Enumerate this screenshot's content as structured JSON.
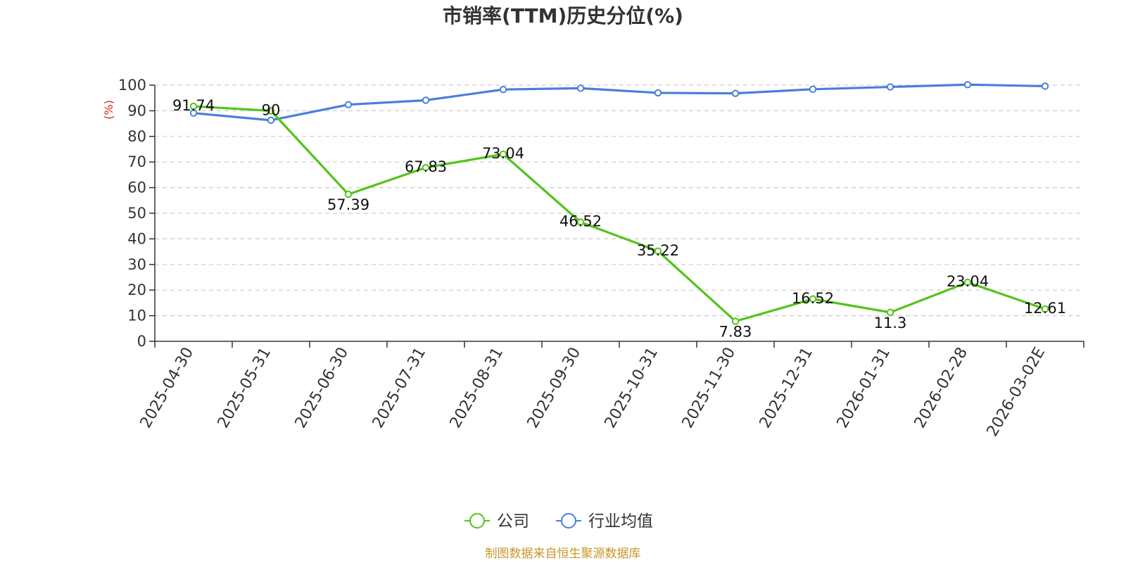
{
  "chart_data": {
    "type": "line",
    "title": "市销率(TTM)历史分位(%)",
    "ylabel": "(%)",
    "ylim": [
      0,
      100
    ],
    "yticks": [
      0,
      10,
      20,
      30,
      40,
      50,
      60,
      70,
      80,
      90,
      100
    ],
    "grid": true,
    "legend_position": "bottom",
    "categories": [
      "2025-04-30",
      "2025-05-31",
      "2025-06-30",
      "2025-07-31",
      "2025-08-31",
      "2025-09-30",
      "2025-10-31",
      "2025-11-30",
      "2025-12-31",
      "2026-01-31",
      "2026-02-28",
      "2026-03-02E"
    ],
    "series": [
      {
        "name": "公司",
        "color": "#52c41a",
        "values": [
          91.74,
          90,
          57.39,
          67.83,
          73.04,
          46.52,
          35.22,
          7.83,
          16.52,
          11.3,
          23.04,
          12.61
        ],
        "labels": [
          "91.74",
          "90",
          "57.39",
          "67.83",
          "73.04",
          "46.52",
          "35.22",
          "7.83",
          "16.52",
          "11.3",
          "23.04",
          "12.61"
        ]
      },
      {
        "name": "行业均值",
        "color": "#4a7fdb",
        "values": [
          89.1,
          86.3,
          92.4,
          94.1,
          98.3,
          98.8,
          97.0,
          96.8,
          98.4,
          99.3,
          100.2,
          99.6
        ]
      }
    ],
    "source": "制图数据来自恒生聚源数据库",
    "source_color": "#c8962a",
    "ylabel_color": "#e02020"
  }
}
